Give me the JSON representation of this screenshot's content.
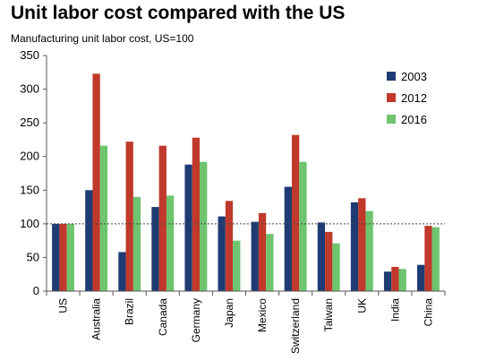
{
  "chart_data": {
    "type": "bar",
    "title": "Unit labor cost compared with the US",
    "subtitle": "Manufacturing unit labor cost, US=100",
    "categories": [
      "US",
      "Australia",
      "Brazil",
      "Canada",
      "Germany",
      "Japan",
      "Mexico",
      "Switzerland",
      "Taiwan",
      "UK",
      "India",
      "China"
    ],
    "series": [
      {
        "name": "2003",
        "color": "#1f3b73",
        "values": [
          100,
          150,
          58,
          125,
          188,
          111,
          103,
          155,
          102,
          132,
          29,
          39
        ]
      },
      {
        "name": "2012",
        "color": "#c0392b",
        "values": [
          100,
          323,
          222,
          216,
          228,
          134,
          116,
          232,
          88,
          138,
          36,
          97
        ]
      },
      {
        "name": "2016",
        "color": "#6fc46f",
        "values": [
          100,
          216,
          140,
          142,
          192,
          75,
          85,
          192,
          71,
          119,
          33,
          95
        ]
      }
    ],
    "ylim": [
      0,
      350
    ],
    "yticks": [
      0,
      50,
      100,
      150,
      200,
      250,
      300,
      350
    ],
    "reference_line": 100,
    "legend_position": "right",
    "xlabel": "",
    "ylabel": ""
  }
}
